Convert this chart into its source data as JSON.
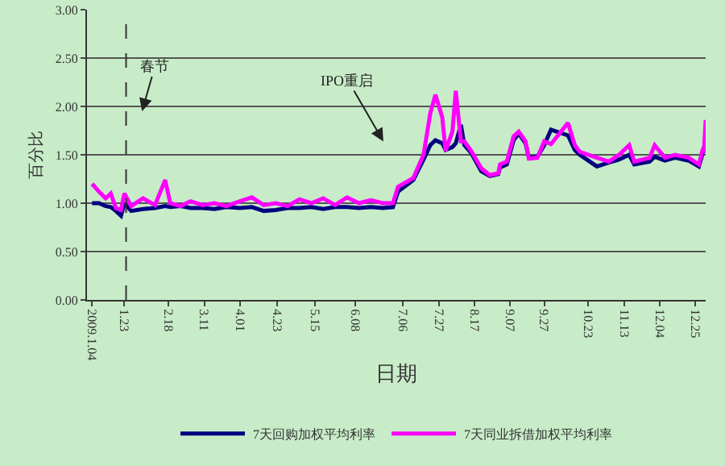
{
  "chart_data": {
    "type": "line",
    "xlabel": "日期",
    "ylabel": "百分比",
    "x": [
      "2009-01-04",
      "2009-01-08",
      "2009-01-12",
      "2009-01-15",
      "2009-01-18",
      "2009-01-21",
      "2009-01-23",
      "2009-01-27",
      "2009-02-03",
      "2009-02-10",
      "2009-02-16",
      "2009-02-19",
      "2009-02-25",
      "2009-03-03",
      "2009-03-10",
      "2009-03-17",
      "2009-03-24",
      "2009-04-01",
      "2009-04-08",
      "2009-04-15",
      "2009-04-22",
      "2009-04-29",
      "2009-05-06",
      "2009-05-13",
      "2009-05-20",
      "2009-05-27",
      "2009-06-03",
      "2009-06-10",
      "2009-06-17",
      "2009-06-24",
      "2009-06-30",
      "2009-07-03",
      "2009-07-12",
      "2009-07-18",
      "2009-07-22",
      "2009-07-25",
      "2009-07-29",
      "2009-07-31",
      "2009-08-04",
      "2009-08-06",
      "2009-08-09",
      "2009-08-11",
      "2009-08-15",
      "2009-08-21",
      "2009-08-26",
      "2009-08-31",
      "2009-09-01",
      "2009-09-05",
      "2009-09-09",
      "2009-09-12",
      "2009-09-16",
      "2009-09-18",
      "2009-09-23",
      "2009-09-27",
      "2009-10-01",
      "2009-10-11",
      "2009-10-15",
      "2009-10-18",
      "2009-10-28",
      "2009-11-04",
      "2009-11-10",
      "2009-11-16",
      "2009-11-19",
      "2009-11-28",
      "2009-12-01",
      "2009-12-07",
      "2009-12-13",
      "2009-12-21",
      "2009-12-27",
      "2009-12-29",
      "2009-12-30",
      "2009-12-31"
    ],
    "series": [
      {
        "name": "7天回购加权平均利率",
        "color": "#000080",
        "values": [
          1.0,
          1.0,
          0.97,
          0.96,
          0.92,
          0.87,
          1.0,
          0.92,
          0.94,
          0.95,
          0.97,
          0.96,
          0.97,
          0.95,
          0.95,
          0.94,
          0.96,
          0.95,
          0.96,
          0.92,
          0.93,
          0.95,
          0.95,
          0.96,
          0.94,
          0.96,
          0.96,
          0.95,
          0.96,
          0.95,
          0.96,
          1.12,
          1.24,
          1.45,
          1.6,
          1.65,
          1.62,
          1.55,
          1.58,
          1.62,
          1.81,
          1.6,
          1.52,
          1.33,
          1.28,
          1.3,
          1.37,
          1.4,
          1.65,
          1.72,
          1.62,
          1.47,
          1.48,
          1.6,
          1.76,
          1.7,
          1.55,
          1.5,
          1.38,
          1.42,
          1.45,
          1.5,
          1.4,
          1.43,
          1.48,
          1.44,
          1.47,
          1.44,
          1.38,
          1.5,
          1.58,
          1.56
        ]
      },
      {
        "name": "7天同业拆借加权平均利率",
        "color": "#ff00ff",
        "values": [
          1.2,
          1.12,
          1.05,
          1.1,
          0.95,
          0.93,
          1.1,
          0.97,
          1.05,
          0.98,
          1.24,
          1.0,
          0.97,
          1.02,
          0.98,
          1.0,
          0.97,
          1.02,
          1.06,
          0.98,
          1.0,
          0.97,
          1.04,
          1.0,
          1.05,
          0.98,
          1.06,
          1.0,
          1.03,
          1.0,
          1.0,
          1.17,
          1.26,
          1.5,
          1.93,
          2.12,
          1.89,
          1.54,
          1.74,
          2.16,
          1.64,
          1.64,
          1.54,
          1.36,
          1.29,
          1.31,
          1.4,
          1.43,
          1.69,
          1.74,
          1.64,
          1.46,
          1.47,
          1.64,
          1.61,
          1.83,
          1.6,
          1.53,
          1.47,
          1.43,
          1.5,
          1.6,
          1.43,
          1.47,
          1.6,
          1.47,
          1.5,
          1.47,
          1.4,
          1.54,
          1.54,
          1.86
        ]
      }
    ],
    "xlim": [
      "2009-01-01",
      "2009-12-31"
    ],
    "xticks": [
      {
        "value": "2009-01-04",
        "label": "2009.1.04"
      },
      {
        "value": "2009-01-23",
        "label": "1.23"
      },
      {
        "value": "2009-02-18",
        "label": "2.18"
      },
      {
        "value": "2009-03-11",
        "label": "3.11"
      },
      {
        "value": "2009-04-01",
        "label": "4.01"
      },
      {
        "value": "2009-04-23",
        "label": "4.23"
      },
      {
        "value": "2009-05-15",
        "label": "5.15"
      },
      {
        "value": "2009-06-08",
        "label": "6.08"
      },
      {
        "value": "2009-07-06",
        "label": "7.06"
      },
      {
        "value": "2009-07-27",
        "label": "7.27"
      },
      {
        "value": "2009-08-17",
        "label": "8.17"
      },
      {
        "value": "2009-09-07",
        "label": "9.07"
      },
      {
        "value": "2009-09-27",
        "label": "9.27"
      },
      {
        "value": "2009-10-23",
        "label": "10.23"
      },
      {
        "value": "2009-11-13",
        "label": "11.13"
      },
      {
        "value": "2009-12-04",
        "label": "12.04"
      },
      {
        "value": "2009-12-25",
        "label": "12.25"
      }
    ],
    "ylim": [
      0,
      3
    ],
    "yticks": [
      {
        "value": 0,
        "label": "0.00"
      },
      {
        "value": 0.5,
        "label": "0.50"
      },
      {
        "value": 1,
        "label": "1.00"
      },
      {
        "value": 1.5,
        "label": "1.50"
      },
      {
        "value": 2,
        "label": "2.00"
      },
      {
        "value": 2.5,
        "label": "2.50"
      },
      {
        "value": 3,
        "label": "3.00"
      }
    ],
    "grid": "y",
    "legend": "bottom",
    "line_style": "solid",
    "ref_lines": [
      {
        "axis": "x",
        "value": "2009-01-24",
        "color": "#333333",
        "line_style": "dashed"
      }
    ],
    "annotations": [
      "春节",
      "IPO重启"
    ]
  }
}
